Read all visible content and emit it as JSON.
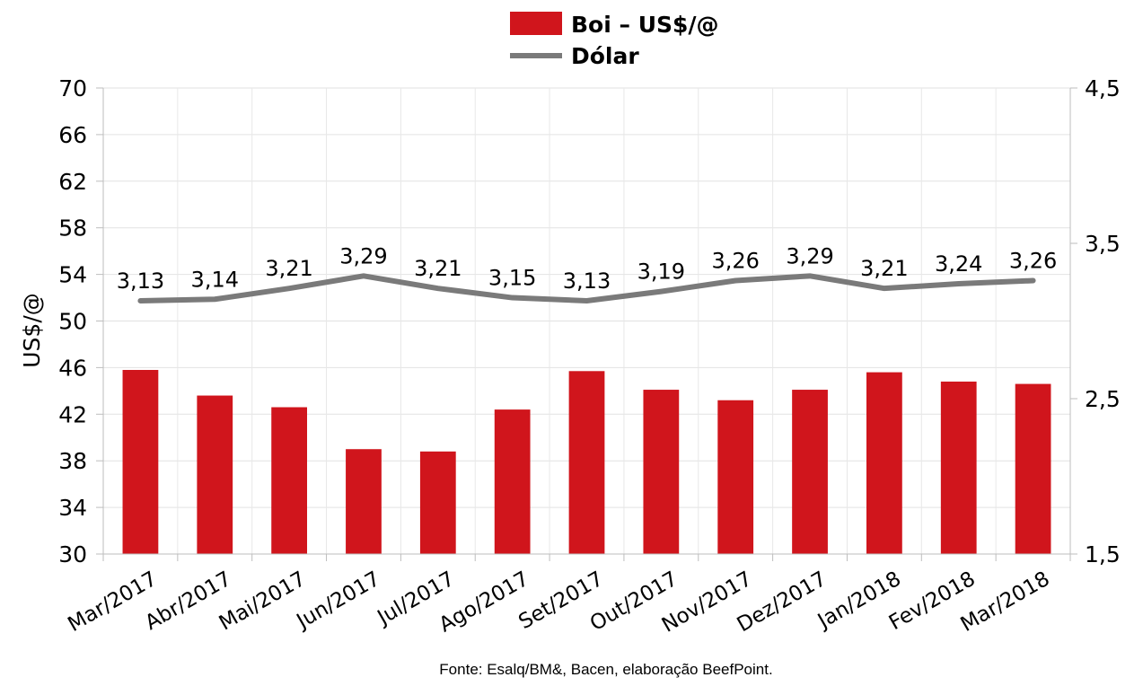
{
  "chart_data": {
    "type": "bar",
    "categories": [
      "Mar/2017",
      "Abr/2017",
      "Mai/2017",
      "Jun/2017",
      "Jul/2017",
      "Ago/2017",
      "Set/2017",
      "Out/2017",
      "Nov/2017",
      "Dez/2017",
      "Jan/2018",
      "Fev/2018",
      "Mar/2018"
    ],
    "series": [
      {
        "name": "Boi – US$/@",
        "type": "bar",
        "axis": "left",
        "color": "#d0151c",
        "values": [
          45.8,
          43.6,
          42.6,
          39.0,
          38.8,
          42.4,
          45.7,
          44.1,
          43.2,
          44.1,
          45.6,
          44.8,
          44.6
        ]
      },
      {
        "name": "Dólar",
        "type": "line",
        "axis": "right",
        "color": "#7a7a7a",
        "values": [
          3.13,
          3.14,
          3.21,
          3.29,
          3.21,
          3.15,
          3.13,
          3.19,
          3.26,
          3.29,
          3.21,
          3.24,
          3.26
        ],
        "labels": [
          "3,13",
          "3,14",
          "3,21",
          "3,29",
          "3,21",
          "3,15",
          "3,13",
          "3,19",
          "3,26",
          "3,29",
          "3,21",
          "3,24",
          "3,26"
        ]
      }
    ],
    "ylabel": "US$/@",
    "ylim": [
      30,
      70
    ],
    "yticks": [
      "30",
      "34",
      "38",
      "42",
      "46",
      "50",
      "54",
      "58",
      "62",
      "66",
      "70"
    ],
    "y2lim": [
      1.5,
      4.5
    ],
    "y2ticks": [
      "1,5",
      "2,5",
      "3,5",
      "4,5"
    ],
    "grid": true,
    "legend_position": "top-center",
    "source": "Fonte: Esalq/BM&, Bacen, elaboração BeefPoint."
  }
}
